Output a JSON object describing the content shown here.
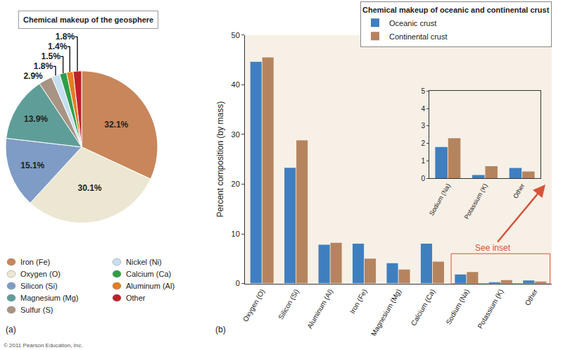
{
  "chart_data": [
    {
      "type": "pie",
      "panel": "(a)",
      "title": "Chemical makeup of the geosphere",
      "categories": [
        "Iron (Fe)",
        "Oxygen (O)",
        "Silicon (Si)",
        "Magnesium (Mg)",
        "Sulfur (S)",
        "Nickel (Ni)",
        "Calcium (Ca)",
        "Aluminum (Al)",
        "Other"
      ],
      "values": [
        32.1,
        30.1,
        15.1,
        13.9,
        2.9,
        1.8,
        1.5,
        1.4,
        1.8
      ],
      "value_labels": [
        "32.1%",
        "30.1%",
        "15.1%",
        "13.9%",
        "2.9%",
        "1.8%",
        "1.5%",
        "1.4%",
        "1.8%"
      ],
      "colors": [
        "#c8865a",
        "#ece7d2",
        "#7f9cc6",
        "#5f9e98",
        "#a89484",
        "#c6def0",
        "#2e9e4a",
        "#e87b1e",
        "#c0202a"
      ],
      "data_labels": true,
      "legend": "bottom left"
    },
    {
      "type": "bar",
      "panel": "(b)",
      "title": "Chemical makeup of oceanic and continental crust",
      "ylabel": "Percent composition (by mass)",
      "categories": [
        "Oxygen (O)",
        "Silicon (Si)",
        "Aluminum (Al)",
        "Iron (Fe)",
        "Magnesium (Mg)",
        "Calcium (Ca)",
        "Sodium (Na)",
        "Potassium (K)",
        "Other"
      ],
      "series": [
        {
          "name": "Oceanic crust",
          "color": "#3f7fbf",
          "values": [
            44.6,
            23.3,
            7.8,
            8.0,
            4.1,
            8.0,
            1.8,
            0.2,
            0.6
          ]
        },
        {
          "name": "Continental crust",
          "color": "#b5845f",
          "values": [
            45.5,
            28.8,
            8.2,
            5.0,
            2.8,
            4.4,
            2.3,
            0.7,
            0.4
          ]
        }
      ],
      "ylim": [
        0,
        50
      ],
      "yticks": [
        0,
        10,
        20,
        30,
        40,
        50
      ],
      "grid": false,
      "legend": "top right",
      "annotations": [
        "See inset"
      ]
    },
    {
      "type": "bar",
      "categories": [
        "Sodium (Na)",
        "Potassium (K)",
        "Other"
      ],
      "series": [
        {
          "name": "Oceanic crust",
          "color": "#3f7fbf",
          "values": [
            1.8,
            0.2,
            0.6
          ]
        },
        {
          "name": "Continental crust",
          "color": "#b5845f",
          "values": [
            2.3,
            0.7,
            0.4
          ]
        }
      ],
      "ylim": [
        0,
        5
      ],
      "yticks": [
        0,
        1,
        2,
        3,
        4,
        5
      ],
      "grid": false
    }
  ],
  "footer": "© 2011 Pearson Education, Inc."
}
